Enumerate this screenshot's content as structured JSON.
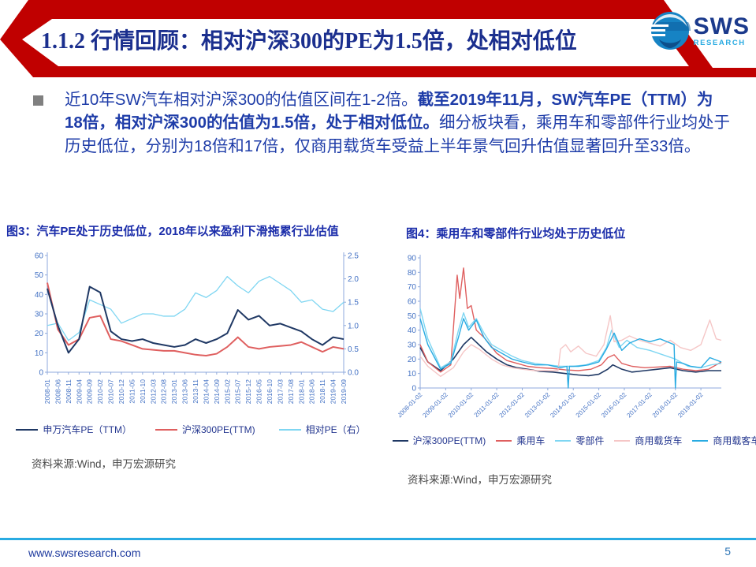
{
  "header": {
    "title": "1.1.2 行情回顾：相对沪深300的PE为1.5倍，处相对低位",
    "banner_color": "#c00000",
    "logo": {
      "brand": "SWS",
      "sub": "RESEARCH"
    }
  },
  "body": {
    "paragraph_segments": [
      {
        "text": "近10年SW汽车相对沪深300的估值区间在1-2倍。",
        "bold": false
      },
      {
        "text": "截至2019年11月，SW汽车PE（TTM）为18倍，相对沪深300的估值为1.5倍，处于相对低位。",
        "bold": true
      },
      {
        "text": "细分板块看，乘用车和零部件行业均处于历史低位，分别为18倍和17倍，仅商用载货车受益上半年景气回升估值显著回升至33倍。",
        "bold": false
      }
    ]
  },
  "figures": [
    {
      "title": "图3：汽车PE处于历史低位，2018年以来盈利下滑拖累行业估值",
      "source": "资料来源:Wind，申万宏源研究"
    },
    {
      "title": "图4：乘用车和零部件行业均处于历史低位",
      "source": "资料来源:Wind，申万宏源研究"
    }
  ],
  "footer": {
    "url": "www.swsresearch.com",
    "page": "5"
  },
  "chart_data": [
    {
      "type": "line",
      "title": "汽车PE处于历史低位，2018年以来盈利下滑拖累行业估值",
      "xlabel": "",
      "ylabel": "",
      "grid": false,
      "legend_position": "bottom",
      "x_labels": [
        "2008-01",
        "2008-06",
        "2008-11",
        "2009-04",
        "2009-09",
        "2010-02",
        "2010-07",
        "2010-12",
        "2011-05",
        "2011-10",
        "2012-03",
        "2012-08",
        "2013-01",
        "2013-06",
        "2013-11",
        "2014-04",
        "2014-09",
        "2015-02",
        "2015-07",
        "2015-12",
        "2016-05",
        "2016-10",
        "2017-03",
        "2017-08",
        "2018-01",
        "2018-06",
        "2018-11",
        "2019-04",
        "2019-09"
      ],
      "y_left": {
        "min": 0,
        "max": 60,
        "ticks": [
          0,
          10,
          20,
          30,
          40,
          50,
          60
        ]
      },
      "y_right": {
        "min": 0,
        "max": 2.5,
        "ticks": [
          "0.0",
          "0.5",
          "1.0",
          "1.5",
          "2.0",
          "2.5"
        ]
      },
      "series": [
        {
          "name": "申万汽车PE（TTM）",
          "color": "#1f3864",
          "axis": "left",
          "lw": 2,
          "values": [
            43,
            24,
            10,
            17,
            44,
            41,
            21,
            17,
            16,
            17,
            15,
            14,
            13,
            14,
            17,
            15,
            17,
            20,
            32,
            27,
            29,
            24,
            25,
            23,
            21,
            17,
            14,
            18,
            17
          ]
        },
        {
          "name": "沪深300PE(TTM)",
          "color": "#df5f5f",
          "axis": "left",
          "lw": 2,
          "values": [
            46,
            22,
            14,
            17,
            28,
            29,
            17,
            16,
            14,
            12,
            11.5,
            11,
            11,
            10,
            9,
            8.5,
            9.5,
            13,
            18,
            13,
            12,
            13,
            13.5,
            14,
            15.5,
            13,
            10.5,
            13,
            12
          ]
        },
        {
          "name": "相对PE（右）",
          "color": "#7fd6f2",
          "axis": "right",
          "lw": 1.3,
          "values": [
            1.0,
            1.05,
            0.68,
            0.85,
            1.55,
            1.45,
            1.35,
            1.05,
            1.15,
            1.25,
            1.25,
            1.2,
            1.2,
            1.35,
            1.7,
            1.6,
            1.75,
            2.05,
            1.85,
            1.7,
            1.95,
            2.05,
            1.9,
            1.75,
            1.5,
            1.55,
            1.35,
            1.3,
            1.5
          ]
        }
      ]
    },
    {
      "type": "line",
      "title": "乘用车和零部件行业均处于历史低位",
      "xlabel": "",
      "ylabel": "",
      "grid": false,
      "legend_position": "bottom",
      "x_labels": [
        "2008-01-02",
        "2009-01-02",
        "2010-01-02",
        "2011-01-02",
        "2012-01-02",
        "2013-01-02",
        "2014-01-02",
        "2015-01-02",
        "2016-01-02",
        "2017-01-02",
        "2018-01-02",
        "2019-01-02"
      ],
      "x_tick_values": [
        0,
        1,
        2,
        3,
        4,
        5,
        6,
        7,
        8,
        9,
        10,
        11
      ],
      "x_range": [
        0,
        11.8
      ],
      "y_left": {
        "min": 0,
        "max": 90,
        "ticks": [
          0,
          10,
          20,
          30,
          40,
          50,
          60,
          70,
          80,
          90
        ]
      },
      "series": [
        {
          "name": "沪深300PE(TTM)",
          "color": "#1f3864",
          "axis": "left",
          "lw": 1.6,
          "points": [
            [
              0,
              28
            ],
            [
              0.3,
              18
            ],
            [
              0.8,
              12
            ],
            [
              1.3,
              20
            ],
            [
              1.7,
              30
            ],
            [
              2.0,
              35
            ],
            [
              2.3,
              30
            ],
            [
              2.6,
              25
            ],
            [
              3.0,
              20
            ],
            [
              3.4,
              16
            ],
            [
              3.8,
              14
            ],
            [
              4.2,
              13
            ],
            [
              4.7,
              11.5
            ],
            [
              5.2,
              11
            ],
            [
              5.7,
              10
            ],
            [
              6.2,
              9
            ],
            [
              6.6,
              8.5
            ],
            [
              7.0,
              9.5
            ],
            [
              7.35,
              13
            ],
            [
              7.55,
              16
            ],
            [
              7.9,
              13
            ],
            [
              8.3,
              11
            ],
            [
              8.8,
              12
            ],
            [
              9.3,
              13
            ],
            [
              9.8,
              14
            ],
            [
              10.3,
              12
            ],
            [
              10.8,
              11
            ],
            [
              11.3,
              12
            ],
            [
              11.8,
              12
            ]
          ]
        },
        {
          "name": "乘用车",
          "color": "#df5f5f",
          "axis": "left",
          "lw": 1.4,
          "points": [
            [
              0,
              30
            ],
            [
              0.3,
              18
            ],
            [
              0.8,
              11
            ],
            [
              1.2,
              16
            ],
            [
              1.45,
              78
            ],
            [
              1.55,
              62
            ],
            [
              1.7,
              83
            ],
            [
              1.85,
              55
            ],
            [
              2.0,
              57
            ],
            [
              2.2,
              40
            ],
            [
              2.5,
              35
            ],
            [
              3.0,
              24
            ],
            [
              3.4,
              19
            ],
            [
              3.8,
              17
            ],
            [
              4.2,
              15
            ],
            [
              4.7,
              14
            ],
            [
              5.2,
              13.5
            ],
            [
              5.7,
              12.5
            ],
            [
              6.2,
              12
            ],
            [
              6.7,
              13
            ],
            [
              7.1,
              16
            ],
            [
              7.35,
              21
            ],
            [
              7.6,
              23
            ],
            [
              7.9,
              17
            ],
            [
              8.3,
              15
            ],
            [
              8.8,
              14
            ],
            [
              9.3,
              14.5
            ],
            [
              9.8,
              15
            ],
            [
              10.3,
              13
            ],
            [
              10.8,
              12
            ],
            [
              11.3,
              13
            ],
            [
              11.8,
              18
            ]
          ]
        },
        {
          "name": "零部件",
          "color": "#7fd6f2",
          "axis": "left",
          "lw": 1.4,
          "points": [
            [
              0,
              55
            ],
            [
              0.3,
              34
            ],
            [
              0.8,
              14
            ],
            [
              1.2,
              18
            ],
            [
              1.5,
              40
            ],
            [
              1.7,
              52
            ],
            [
              1.9,
              42
            ],
            [
              2.2,
              48
            ],
            [
              2.5,
              38
            ],
            [
              2.8,
              30
            ],
            [
              3.2,
              26
            ],
            [
              3.6,
              22
            ],
            [
              4.0,
              19
            ],
            [
              4.5,
              17
            ],
            [
              5.0,
              16
            ],
            [
              5.5,
              15
            ],
            [
              6.0,
              15
            ],
            [
              6.5,
              16
            ],
            [
              7.0,
              19
            ],
            [
              7.3,
              28
            ],
            [
              7.5,
              40
            ],
            [
              7.8,
              28
            ],
            [
              8.1,
              33
            ],
            [
              8.5,
              28
            ],
            [
              9.0,
              26
            ],
            [
              9.5,
              23
            ],
            [
              10.0,
              20
            ],
            [
              10.5,
              15
            ],
            [
              11.0,
              14
            ],
            [
              11.4,
              16
            ],
            [
              11.8,
              17
            ]
          ]
        },
        {
          "name": "商用载货车",
          "color": "#f5c6c6",
          "axis": "left",
          "lw": 1.4,
          "points": [
            [
              0,
              22
            ],
            [
              0.3,
              15
            ],
            [
              0.8,
              8
            ],
            [
              1.3,
              14
            ],
            [
              1.7,
              25
            ],
            [
              2.0,
              30
            ],
            [
              2.3,
              27
            ],
            [
              2.8,
              20
            ],
            [
              3.2,
              16
            ],
            [
              3.6,
              14
            ],
            [
              4.0,
              13
            ],
            [
              4.5,
              12
            ],
            [
              5.0,
              12
            ],
            [
              5.4,
              12
            ],
            [
              5.5,
              27
            ],
            [
              5.7,
              30
            ],
            [
              5.9,
              25
            ],
            [
              6.2,
              29
            ],
            [
              6.5,
              24
            ],
            [
              6.9,
              22
            ],
            [
              7.2,
              30
            ],
            [
              7.45,
              50
            ],
            [
              7.6,
              32
            ],
            [
              7.9,
              33
            ],
            [
              8.2,
              36
            ],
            [
              8.6,
              33
            ],
            [
              9.0,
              31
            ],
            [
              9.4,
              29
            ],
            [
              9.8,
              33
            ],
            [
              10.2,
              28
            ],
            [
              10.6,
              26
            ],
            [
              11.0,
              30
            ],
            [
              11.35,
              47
            ],
            [
              11.6,
              34
            ],
            [
              11.8,
              33
            ]
          ]
        },
        {
          "name": "商用载客车",
          "color": "#29abe2",
          "axis": "left",
          "lw": 1.4,
          "points": [
            [
              0,
              48
            ],
            [
              0.3,
              30
            ],
            [
              0.8,
              13
            ],
            [
              1.2,
              17
            ],
            [
              1.5,
              35
            ],
            [
              1.7,
              48
            ],
            [
              1.9,
              40
            ],
            [
              2.2,
              47
            ],
            [
              2.5,
              35
            ],
            [
              2.8,
              28
            ],
            [
              3.2,
              24
            ],
            [
              3.6,
              20
            ],
            [
              4.0,
              18
            ],
            [
              4.5,
              16
            ],
            [
              5.0,
              16
            ],
            [
              5.5,
              14
            ],
            [
              5.75,
              15
            ],
            [
              5.8,
              0
            ],
            [
              5.85,
              15
            ],
            [
              6.2,
              15
            ],
            [
              6.6,
              16
            ],
            [
              7.0,
              18
            ],
            [
              7.3,
              27
            ],
            [
              7.6,
              38
            ],
            [
              7.9,
              26
            ],
            [
              8.2,
              31
            ],
            [
              8.6,
              34
            ],
            [
              9.0,
              32
            ],
            [
              9.4,
              34
            ],
            [
              9.95,
              30
            ],
            [
              10.0,
              0
            ],
            [
              10.05,
              18
            ],
            [
              10.3,
              17
            ],
            [
              10.6,
              15
            ],
            [
              11.0,
              14
            ],
            [
              11.35,
              21
            ],
            [
              11.8,
              18
            ]
          ]
        }
      ]
    }
  ]
}
